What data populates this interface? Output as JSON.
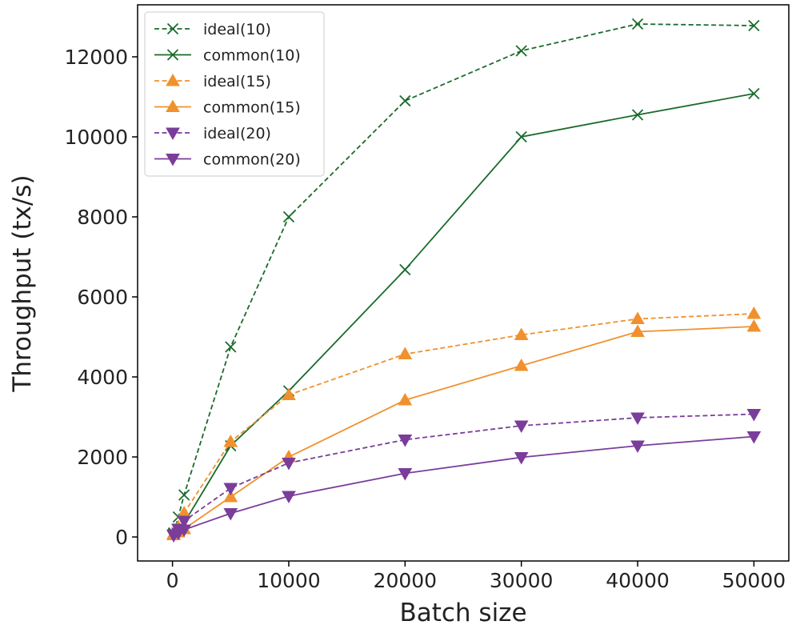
{
  "chart_data": {
    "type": "line",
    "title": "",
    "xlabel": "Batch size",
    "ylabel": "Throughput (tx/s)",
    "xlim": [
      -3000,
      53000
    ],
    "ylim": [
      -600,
      13300
    ],
    "xticks": [
      0,
      10000,
      20000,
      30000,
      40000,
      50000
    ],
    "yticks": [
      0,
      2000,
      4000,
      6000,
      8000,
      10000,
      12000
    ],
    "x": [
      100,
      500,
      1000,
      5000,
      10000,
      20000,
      30000,
      40000,
      50000
    ],
    "legend_position": "top-left",
    "series": [
      {
        "name": "ideal(10)",
        "color": "#1a6b2c",
        "dashed": true,
        "marker": "x",
        "values": [
          100,
          500,
          1050,
          4750,
          8000,
          10900,
          12150,
          12820,
          12780
        ]
      },
      {
        "name": "common(10)",
        "color": "#1a6b2c",
        "dashed": false,
        "marker": "x",
        "values": [
          80,
          200,
          350,
          2280,
          3650,
          6680,
          10000,
          10550,
          11080
        ]
      },
      {
        "name": "ideal(15)",
        "color": "#f0912e",
        "dashed": true,
        "marker": "triangle-up",
        "values": [
          80,
          250,
          600,
          2380,
          3550,
          4570,
          5050,
          5450,
          5580
        ]
      },
      {
        "name": "common(15)",
        "color": "#f0912e",
        "dashed": false,
        "marker": "triangle-up",
        "values": [
          50,
          120,
          200,
          1000,
          2000,
          3420,
          4280,
          5130,
          5260
        ]
      },
      {
        "name": "ideal(20)",
        "color": "#7a3d9a",
        "dashed": true,
        "marker": "triangle-down",
        "values": [
          60,
          200,
          400,
          1220,
          1850,
          2430,
          2780,
          2980,
          3070
        ]
      },
      {
        "name": "common(20)",
        "color": "#7a3d9a",
        "dashed": false,
        "marker": "triangle-down",
        "values": [
          40,
          100,
          180,
          590,
          1020,
          1590,
          1990,
          2280,
          2510
        ]
      }
    ]
  }
}
